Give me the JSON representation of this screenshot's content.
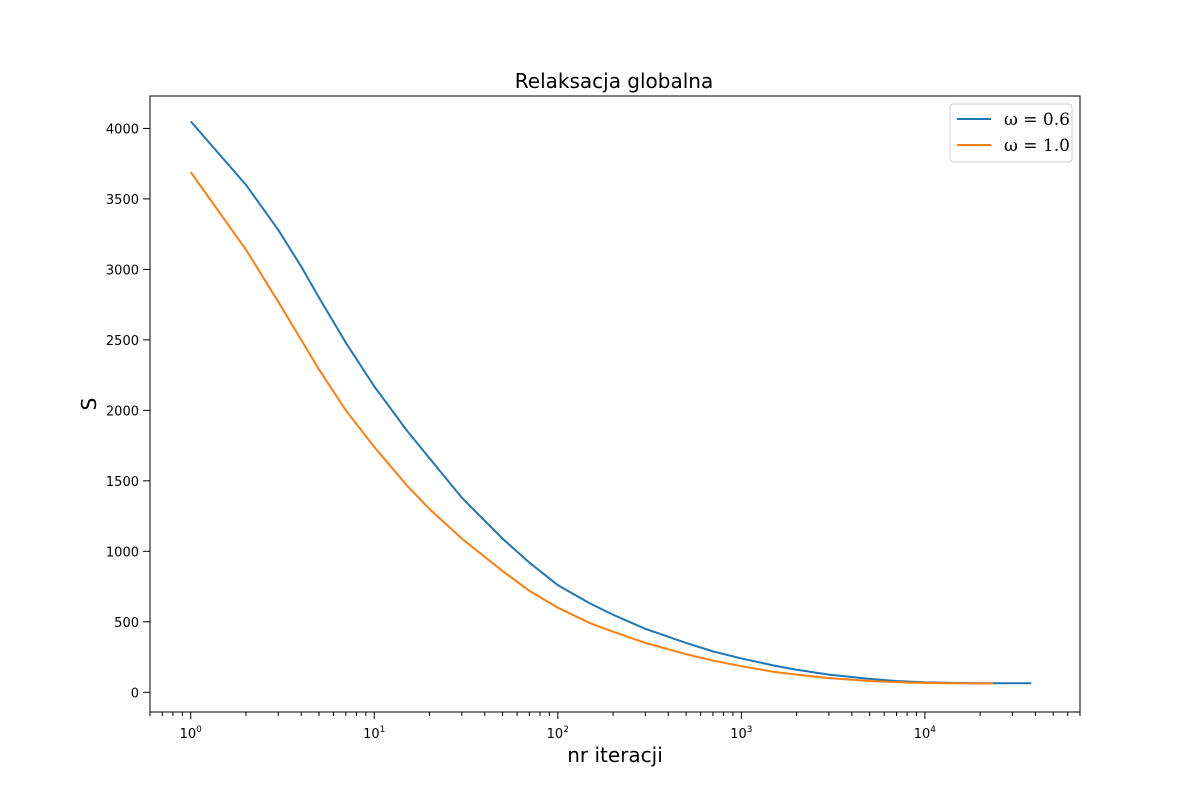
{
  "chart_data": {
    "type": "line",
    "title": "Relaksacja globalna",
    "xlabel": "nr iteracji",
    "ylabel": "S",
    "xscale": "log",
    "xlim": [
      0.6,
      70000
    ],
    "ylim": [
      -140,
      4230
    ],
    "xticks": [
      {
        "value": 1,
        "base": "10",
        "exp": "0"
      },
      {
        "value": 10,
        "base": "10",
        "exp": "1"
      },
      {
        "value": 100,
        "base": "10",
        "exp": "2"
      },
      {
        "value": 1000,
        "base": "10",
        "exp": "3"
      },
      {
        "value": 10000,
        "base": "10",
        "exp": "4"
      }
    ],
    "yticks": [
      0,
      500,
      1000,
      1500,
      2000,
      2500,
      3000,
      3500,
      4000
    ],
    "grid": false,
    "legend_position": "upper right",
    "series": [
      {
        "name": "ω = 0.6",
        "color": "#1f77b4",
        "x": [
          1,
          2,
          3,
          4,
          5,
          7,
          10,
          15,
          20,
          30,
          50,
          70,
          100,
          150,
          200,
          300,
          500,
          700,
          1000,
          1500,
          2000,
          3000,
          5000,
          7000,
          10000,
          15000,
          20000,
          30000,
          38000
        ],
        "y": [
          4050,
          3600,
          3280,
          3020,
          2800,
          2480,
          2170,
          1860,
          1660,
          1380,
          1090,
          920,
          760,
          630,
          550,
          450,
          350,
          290,
          240,
          190,
          160,
          125,
          95,
          80,
          70,
          66,
          64,
          64,
          64
        ]
      },
      {
        "name": "ω = 1.0",
        "color": "#ff7f0e",
        "x": [
          1,
          2,
          3,
          4,
          5,
          7,
          10,
          15,
          20,
          30,
          50,
          70,
          100,
          150,
          200,
          300,
          500,
          700,
          1000,
          1500,
          2000,
          3000,
          5000,
          7000,
          10000,
          15000,
          20000,
          23500
        ],
        "y": [
          3690,
          3140,
          2770,
          2500,
          2290,
          2000,
          1740,
          1470,
          1300,
          1090,
          860,
          720,
          600,
          490,
          430,
          350,
          270,
          225,
          185,
          145,
          125,
          100,
          80,
          72,
          66,
          64,
          63,
          63
        ]
      }
    ]
  }
}
